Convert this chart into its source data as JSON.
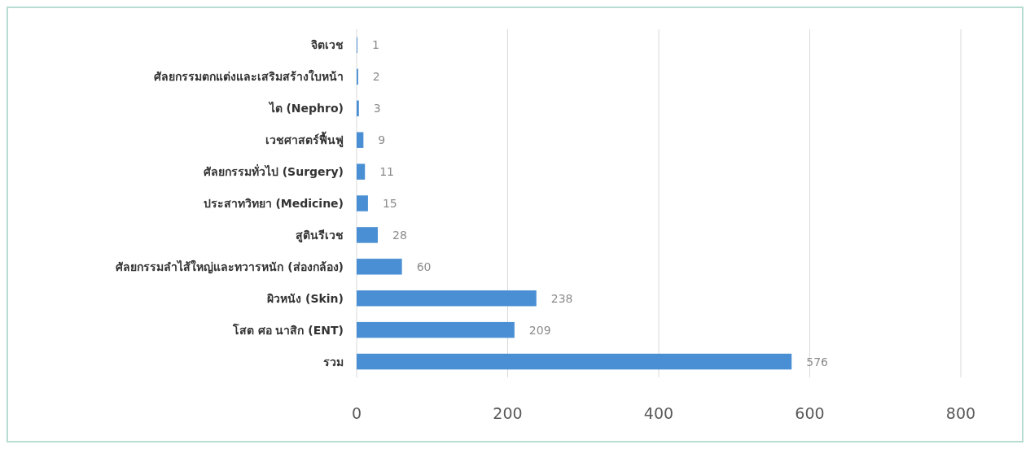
{
  "chart_data": {
    "type": "bar",
    "orientation": "horizontal",
    "categories": [
      "จิตเวช",
      "ศัลยกรรมตกแต่งและเสริมสร้างใบหน้า",
      "ไต (Nephro)",
      "เวชศาสตร์ฟื้นฟู",
      "ศัลยกรรมทั่วไป (Surgery)",
      "ประสาทวิทยา (Medicine)",
      "สูตินรีเวช",
      "ศัลยกรรมลำไส้ใหญ่และทวารหนัก (ส่องกล้อง)",
      "ผิวหนัง (Skin)",
      "โสต ศอ นาสิก (ENT)",
      "รวม"
    ],
    "values": [
      1,
      2,
      3,
      9,
      11,
      15,
      28,
      60,
      238,
      209,
      576
    ],
    "color": "#4a8fd4",
    "xlim": [
      0,
      800
    ],
    "xticks": [
      0,
      200,
      400,
      600,
      800
    ],
    "grid": "x",
    "data_labels": true
  }
}
